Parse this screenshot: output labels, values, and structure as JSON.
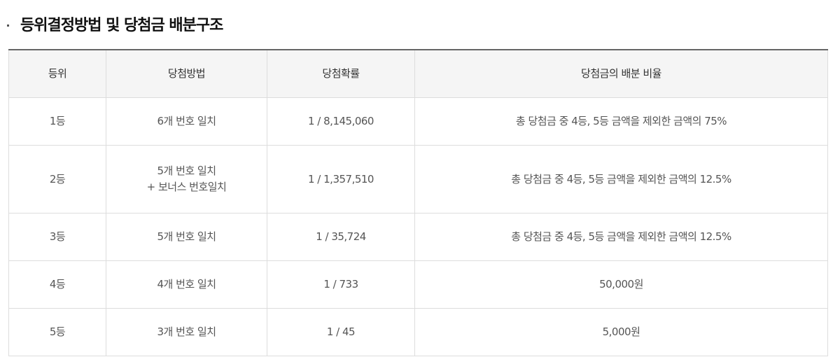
{
  "title": "등위결정방법 및 당첨금 배분구조",
  "table": {
    "headers": [
      "등위",
      "당첨방법",
      "당첨확률",
      "당첨금의 배분 비율"
    ],
    "rows": [
      {
        "rank": "1등",
        "method": [
          "6개 번호 일치"
        ],
        "odds": "1 / 8,145,060",
        "share": "총 당첨금 중 4등, 5등 금액을 제외한 금액의 75%"
      },
      {
        "rank": "2등",
        "method": [
          "5개 번호 일치",
          "+ 보너스 번호일치"
        ],
        "odds": "1 / 1,357,510",
        "share": "총 당첨금 중 4등, 5등 금액을 제외한 금액의 12.5%"
      },
      {
        "rank": "3등",
        "method": [
          "5개 번호 일치"
        ],
        "odds": "1 / 35,724",
        "share": "총 당첨금 중 4등, 5등 금액을 제외한 금액의 12.5%"
      },
      {
        "rank": "4등",
        "method": [
          "4개 번호 일치"
        ],
        "odds": "1 / 733",
        "share": "50,000원"
      },
      {
        "rank": "5등",
        "method": [
          "3개 번호 일치"
        ],
        "odds": "1 / 45",
        "share": "5,000원"
      }
    ]
  }
}
